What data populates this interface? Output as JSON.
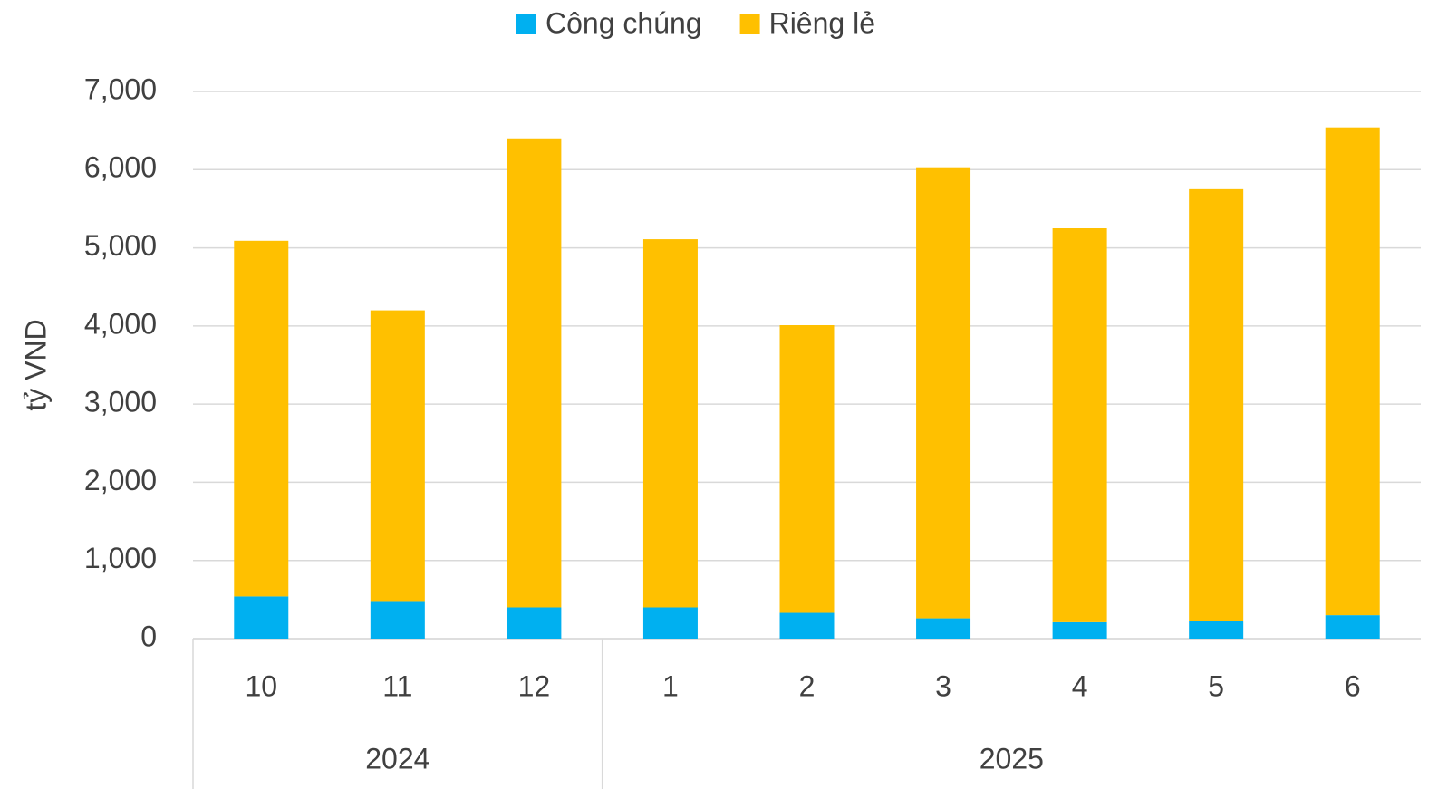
{
  "chart_data": {
    "type": "stacked_bar",
    "y_label": "tỷ VND",
    "category_groups": [
      {
        "label": "2024",
        "categories": [
          "10",
          "11",
          "12"
        ]
      },
      {
        "label": "2025",
        "categories": [
          "1",
          "2",
          "3",
          "4",
          "5",
          "6"
        ]
      }
    ],
    "series": [
      {
        "name": "Công chúng",
        "color": "#00b0f0",
        "values": [
          540,
          470,
          400,
          400,
          330,
          260,
          210,
          230,
          300
        ]
      },
      {
        "name": "Riêng lẻ",
        "color": "#ffc000",
        "values": [
          4550,
          3730,
          6000,
          4710,
          3680,
          5770,
          5040,
          5520,
          6240
        ]
      }
    ],
    "ylim": [
      0,
      7000
    ],
    "yticks": [
      0,
      {
        "value": 1000,
        "label": "1,000"
      },
      {
        "value": 2000,
        "label": "2,000"
      },
      {
        "value": 3000,
        "label": "3,000"
      },
      {
        "value": 4000,
        "label": "4,000"
      },
      {
        "value": 5000,
        "label": "5,000"
      },
      {
        "value": 6000,
        "label": "6,000"
      },
      {
        "value": 7000,
        "label": "7,000"
      }
    ],
    "grid": true,
    "legend": "top"
  }
}
